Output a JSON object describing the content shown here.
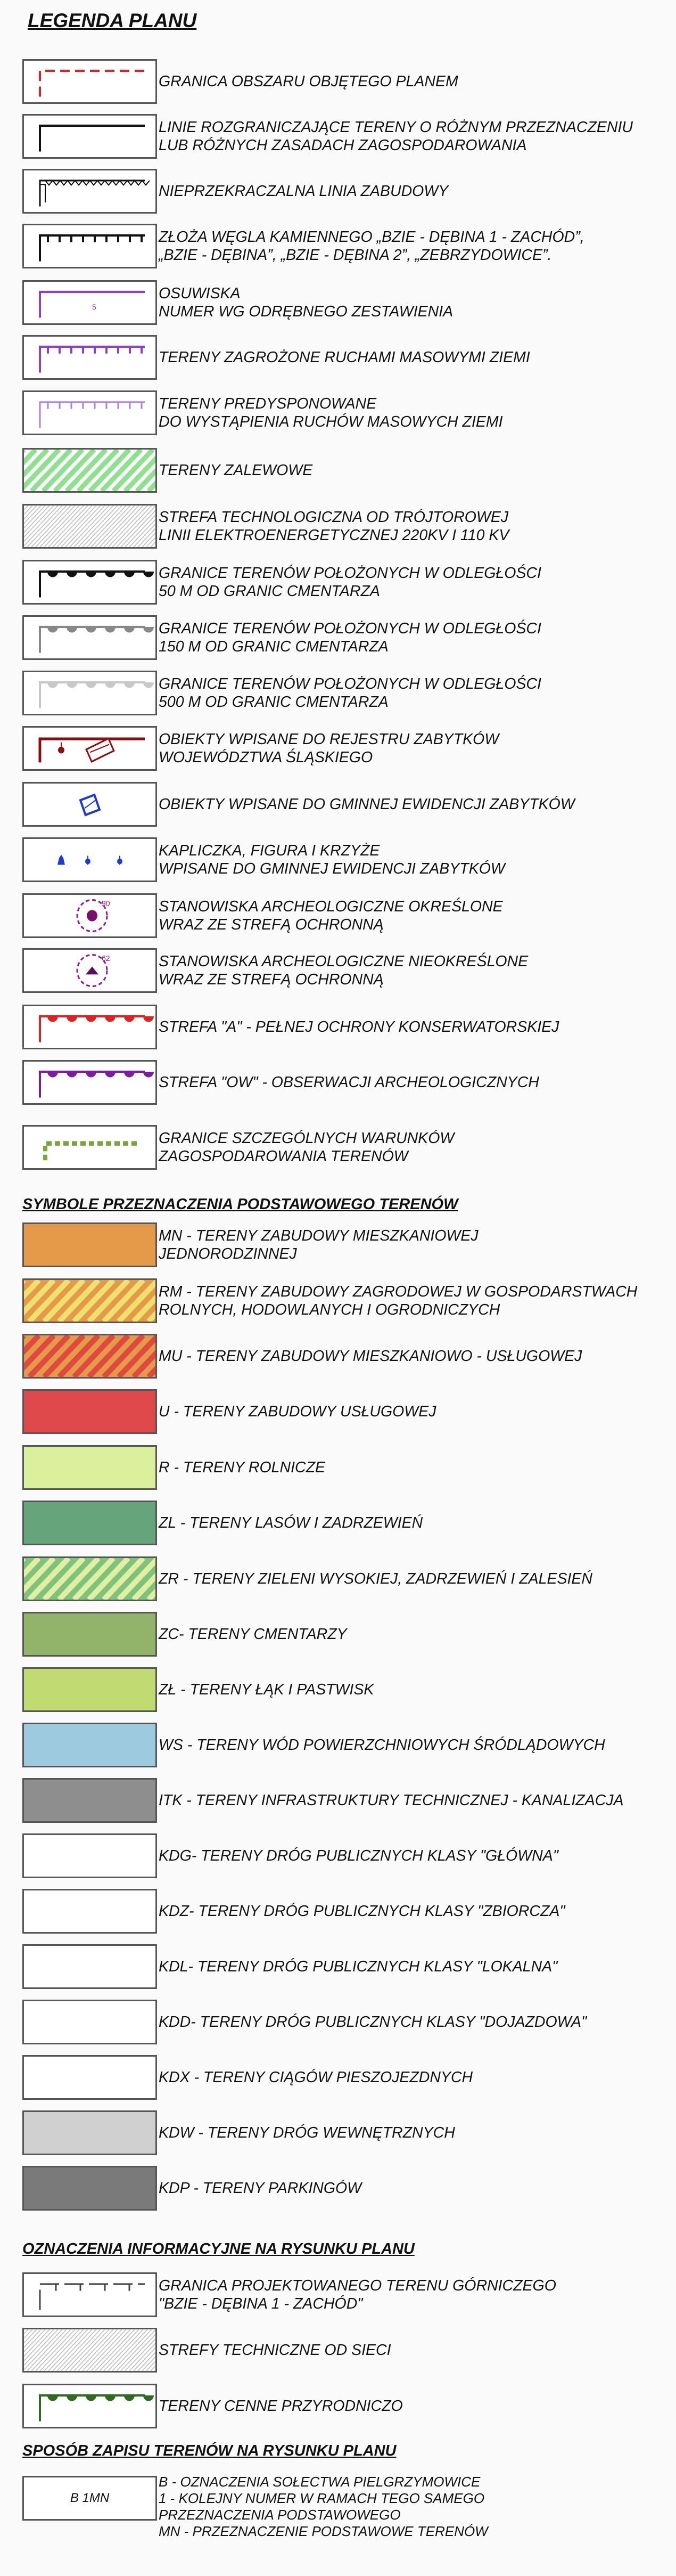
{
  "title": "LEGENDA PLANU",
  "sections": {
    "symbols": "SYMBOLE PRZEZNACZENIA PODSTAWOWEGO TERENÓW",
    "info": "OZNACZENIA INFORMACYJNE NA RYSUNKU PLANU",
    "notation": "SPOSÓB ZAPISU TERENÓW NA RYSUNKU PLANU"
  },
  "legend": [
    {
      "lines": [
        "GRANICA OBSZARU OBJĘTEGO PLANEM"
      ],
      "icon": "red-dashed-border"
    },
    {
      "lines": [
        "LINIE ROZGRANICZAJĄCE TERENY O RÓŻNYM PRZEZNACZENIU",
        "LUB RÓŻNYCH ZASADACH ZAGOSPODAROWANIA"
      ],
      "icon": "black-corner-line"
    },
    {
      "lines": [
        "NIEPRZEKRACZALNA LINIA ZABUDOWY"
      ],
      "icon": "zigzag-line"
    },
    {
      "lines": [
        "ZŁOŻA WĘGLA KAMIENNEGO „BZIE - DĘBINA 1 - ZACHÓD”,",
        "„BZIE - DĘBINA”, „BZIE - DĘBINA 2”, „ZEBRZYDOWICE”."
      ],
      "icon": "black-tick-line"
    },
    {
      "lines": [
        "OSUWISKA",
        "NUMER WG ODRĘBNEGO ZESTAWIENIA"
      ],
      "icon": "purple-corner-line",
      "label": "5"
    },
    {
      "lines": [
        "TERENY ZAGROŻONE RUCHAMI MASOWYMI ZIEMI"
      ],
      "icon": "purple-tick-line"
    },
    {
      "lines": [
        "TERENY PREDYSPONOWANE",
        "DO WYSTĄPIENIA RUCHÓW MASOWYCH ZIEMI"
      ],
      "icon": "light-purple-tick-line"
    },
    {
      "lines": [
        "TERENY ZALEWOWE"
      ],
      "icon": "green-hatch"
    },
    {
      "lines": [
        "STREFA TECHNOLOGICZNA OD TRÓJTOROWEJ",
        "LINII ELEKTROENERGETYCZNEJ 220KV I 110 KV"
      ],
      "icon": "gray-hatch"
    },
    {
      "lines": [
        "GRANICE TERENÓW POŁOŻONYCH W ODLEGŁOŚCI",
        "50 M OD GRANIC CMENTARZA"
      ],
      "icon": "black-scallop"
    },
    {
      "lines": [
        "GRANICE TERENÓW POŁOŻONYCH W ODLEGŁOŚCI",
        "150 M OD GRANIC CMENTARZA"
      ],
      "icon": "gray-scallop"
    },
    {
      "lines": [
        "GRANICE TERENÓW POŁOŻONYCH W ODLEGŁOŚCI",
        "500 M OD GRANIC CMENTARZA"
      ],
      "icon": "light-gray-scallop"
    },
    {
      "lines": [
        "OBIEKTY WPISANE DO REJESTRU ZABYTKÓW",
        "WOJEWÓDZTWA ŚLĄSKIEGO"
      ],
      "icon": "monument-register"
    },
    {
      "lines": [
        "OBIEKTY WPISANE DO GMINNEJ EWIDENCJI ZABYTKÓW"
      ],
      "icon": "blue-diamond"
    },
    {
      "lines": [
        "KAPLICZKA, FIGURA I KRZYŻE",
        "WPISANE DO GMINNEJ EWIDENCJI ZABYTKÓW"
      ],
      "icon": "shrine-markers"
    },
    {
      "lines": [
        "STANOWISKA ARCHEOLOGICZNE OKREŚLONE",
        "WRAZ ZE STREFĄ OCHRONNĄ"
      ],
      "icon": "archeo-defined",
      "label": "90"
    },
    {
      "lines": [
        "STANOWISKA ARCHEOLOGICZNE NIEOKREŚLONE",
        "WRAZ ZE STREFĄ OCHRONNĄ"
      ],
      "icon": "archeo-undefined",
      "label": "62"
    },
    {
      "lines": [
        "STREFA \"A\" - PEŁNEJ OCHRONY KONSERWATORSKIEJ"
      ],
      "icon": "red-scallop"
    },
    {
      "lines": [
        "STREFA \"OW\" - OBSERWACJI ARCHEOLOGICZNYCH"
      ],
      "icon": "purple-scallop"
    },
    {
      "lines": [
        "GRANICE SZCZEGÓLNYCH WARUNKÓW",
        "ZAGOSPODAROWANIA TERENÓW"
      ],
      "icon": "green-dashed-corner"
    }
  ],
  "symbols": [
    {
      "lines": [
        "MN - TERENY ZABUDOWY MIESZKANIOWEJ",
        "JEDNORODZINNEJ"
      ],
      "fill": "#e49a49"
    },
    {
      "lines": [
        "RM - TERENY ZABUDOWY ZAGRODOWEJ W GOSPODARSTWACH",
        "ROLNYCH, HODOWLANYCH I OGRODNICZYCH"
      ],
      "fill": "#e49a49",
      "stripe": "#f0e070"
    },
    {
      "lines": [
        "MU - TERENY ZABUDOWY MIESZKANIOWO - USŁUGOWEJ"
      ],
      "fill": "#e49a49",
      "stripe": "#e0493f"
    },
    {
      "lines": [
        "U - TERENY ZABUDOWY USŁUGOWEJ"
      ],
      "fill": "#e0494b"
    },
    {
      "lines": [
        "R - TERENY ROLNICZE"
      ],
      "fill": "#dcef9c"
    },
    {
      "lines": [
        "ZL - TERENY LASÓW I ZADRZEWIEŃ"
      ],
      "fill": "#66a47c"
    },
    {
      "lines": [
        "ZR - TERENY ZIELENI WYSOKIEJ, ZADRZEWIEŃ I ZALESIEŃ"
      ],
      "fill": "#7ec27e",
      "stripe": "#e0f0a0"
    },
    {
      "lines": [
        "ZC- TERENY CMENTARZY"
      ],
      "fill": "#92b46a"
    },
    {
      "lines": [
        "ZŁ - TERENY ŁĄK I PASTWISK"
      ],
      "fill": "#c2da72"
    },
    {
      "lines": [
        "WS - TERENY WÓD POWIERZCHNIOWYCH ŚRÓDLĄDOWYCH"
      ],
      "fill": "#9ecae0"
    },
    {
      "lines": [
        "ITK - TERENY INFRASTRUKTURY TECHNICZNEJ - KANALIZACJA"
      ],
      "fill": "#8e8e8e"
    },
    {
      "lines": [
        "KDG- TERENY DRÓG PUBLICZNYCH KLASY \"GŁÓWNA\""
      ],
      "fill": "#ffffff"
    },
    {
      "lines": [
        "KDZ- TERENY DRÓG PUBLICZNYCH KLASY \"ZBIORCZA\""
      ],
      "fill": "#ffffff"
    },
    {
      "lines": [
        "KDL- TERENY DRÓG PUBLICZNYCH KLASY \"LOKALNA\""
      ],
      "fill": "#ffffff"
    },
    {
      "lines": [
        "KDD- TERENY DRÓG PUBLICZNYCH KLASY \"DOJAZDOWA\""
      ],
      "fill": "#ffffff"
    },
    {
      "lines": [
        "KDX - TERENY CIĄGÓW PIESZOJEZDNYCH"
      ],
      "fill": "#ffffff"
    },
    {
      "lines": [
        "KDW - TERENY DRÓG WEWNĘTRZNYCH"
      ],
      "fill": "#d0d0d0"
    },
    {
      "lines": [
        "KDP - TERENY PARKINGÓW"
      ],
      "fill": "#7a7a7a"
    }
  ],
  "info": [
    {
      "lines": [
        "GRANICA PROJEKTOWANEGO TERENU GÓRNICZEGO",
        "\"BZIE - DĘBINA 1 - ZACHÓD\""
      ],
      "icon": "mining-boundary"
    },
    {
      "lines": [
        "STREFY TECHNICZNE OD SIECI"
      ],
      "icon": "gray-hatch"
    },
    {
      "lines": [
        "TERENY CENNE PRZYRODNICZO"
      ],
      "icon": "dark-green-scallop"
    }
  ],
  "notation": {
    "code": "B 1MN",
    "lines": [
      "B - OZNACZENIA SOŁECTWA PIELGRZYMOWICE",
      "1 - KOLEJNY NUMER W RAMACH TEGO SAMEGO",
      "PRZEZNACZENIA PODSTAWOWEGO",
      "MN - PRZEZNACZENIE PODSTAWOWE TERENÓW"
    ]
  }
}
